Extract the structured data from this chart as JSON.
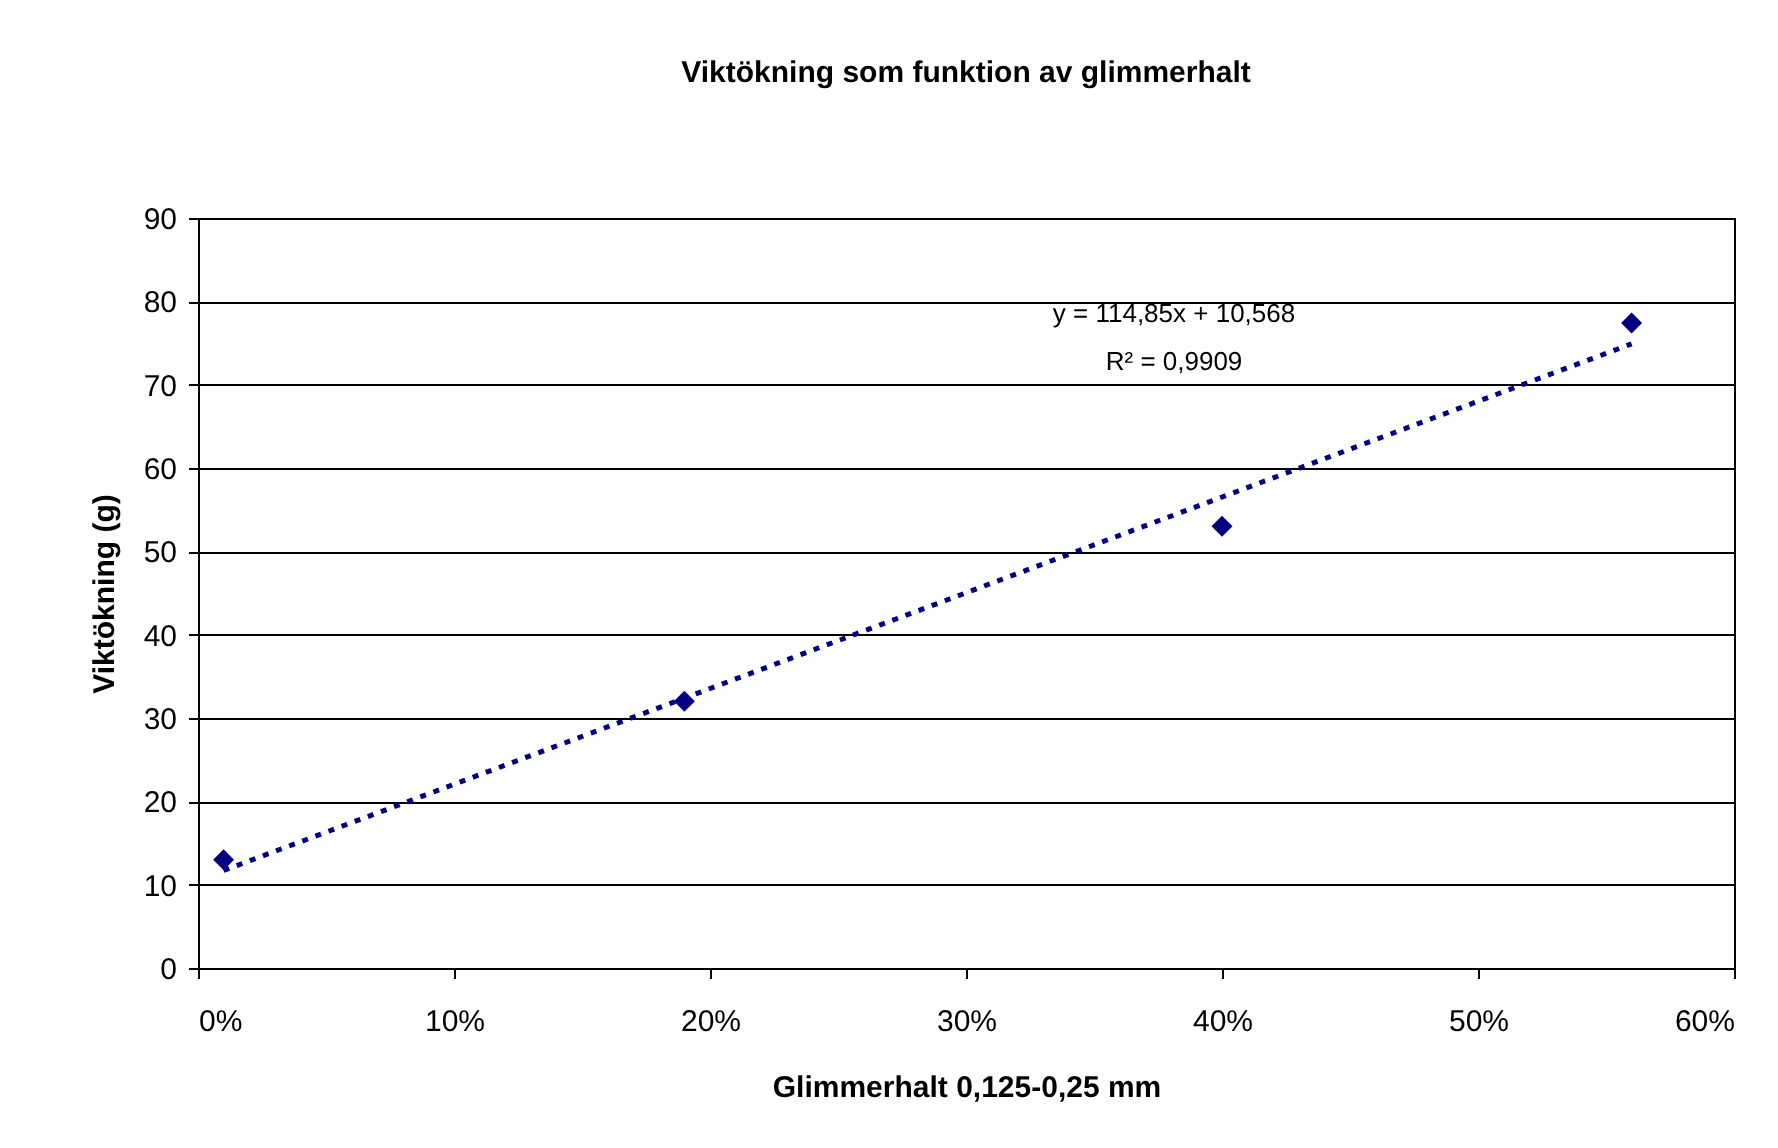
{
  "chart_data": {
    "type": "scatter",
    "title": "Viktökning som funktion av glimmerhalt",
    "xlabel": "Glimmerhalt 0,125-0,25 mm",
    "ylabel": "Viktökning (g)",
    "x": [
      0.01,
      0.19,
      0.4,
      0.56
    ],
    "series": [
      {
        "color": "#000080",
        "marker": "diamond",
        "values": [
          13,
          32,
          53,
          77.4
        ]
      },
      {
        "type": "line",
        "color": "#000080",
        "line_style": "dotted",
        "marker": "none",
        "x": [
          0.01,
          0.56
        ],
        "values": [
          11.7,
          74.9
        ]
      }
    ],
    "xlim": [
      0,
      0.6
    ],
    "xticks": [
      {
        "value": 0,
        "label": "0%"
      },
      {
        "value": 0.1,
        "label": "10%"
      },
      {
        "value": 0.2,
        "label": "20%"
      },
      {
        "value": 0.3,
        "label": "30%"
      },
      {
        "value": 0.4,
        "label": "40%"
      },
      {
        "value": 0.5,
        "label": "50%"
      },
      {
        "value": 0.6,
        "label": "60%"
      }
    ],
    "ylim": [
      0,
      90
    ],
    "yticks": [
      0,
      10,
      20,
      30,
      40,
      50,
      60,
      70,
      80,
      90
    ],
    "grid": "y",
    "annotations": [
      "y = 114,85x + 10,568",
      "R² = 0,9909"
    ]
  }
}
